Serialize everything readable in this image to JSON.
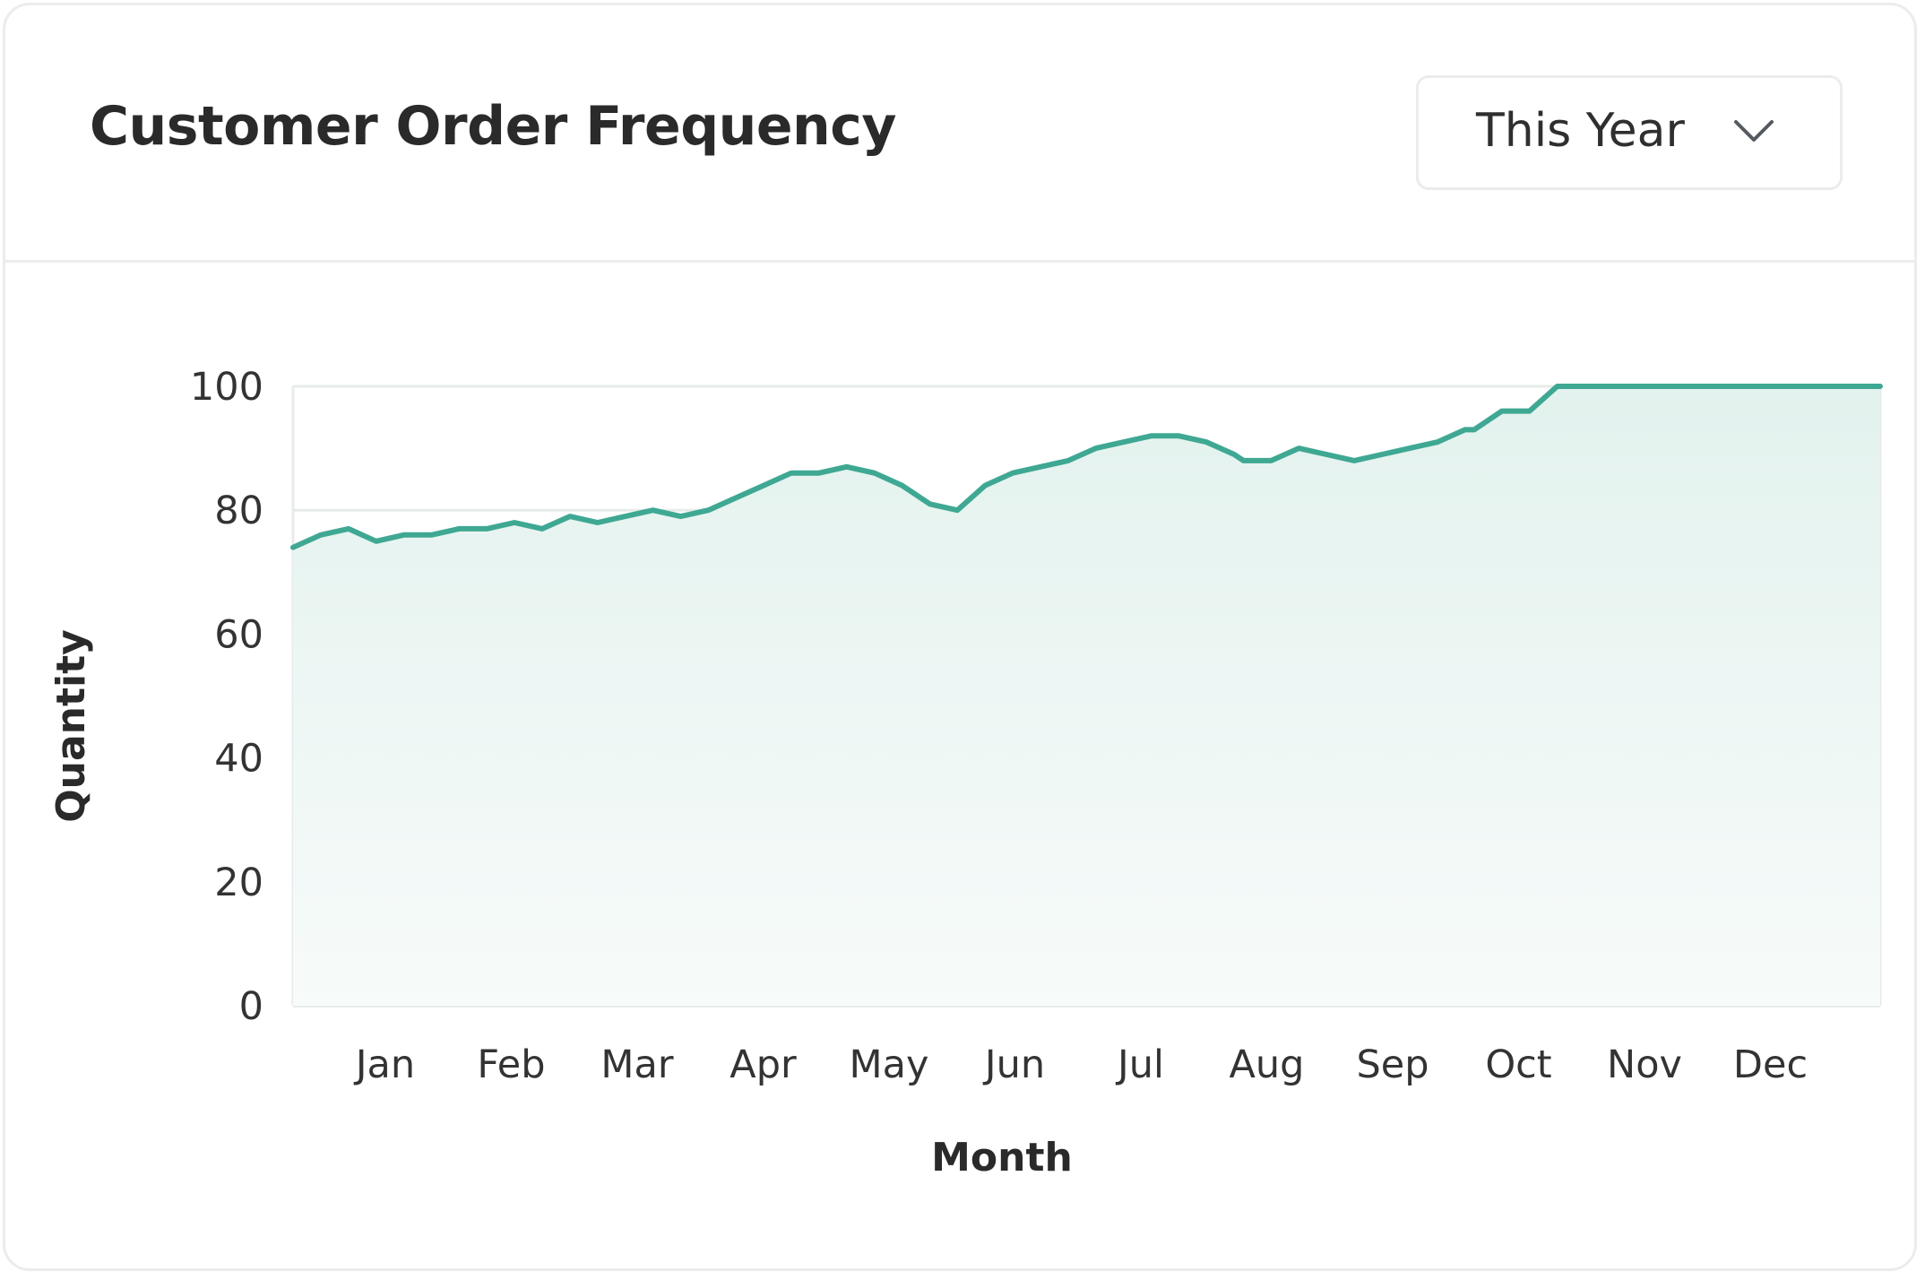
{
  "header": {
    "title": "Customer Order Frequency"
  },
  "period_select": {
    "value": "This Year",
    "icon": "chevron-down-icon"
  },
  "colors": {
    "line": "#3fa893",
    "area_top": "#e6f3f0",
    "grid": "#e6ecea",
    "border": "#ececec"
  },
  "chart_data": {
    "type": "area",
    "xlabel": "Month",
    "ylabel": "Quantity",
    "ylim": [
      0,
      100
    ],
    "yticks": [
      "0",
      "20",
      "40",
      "60",
      "80",
      "100"
    ],
    "xticks": [
      "Jan",
      "Feb",
      "Mar",
      "Apr",
      "May",
      "Jun",
      "Jul",
      "Aug",
      "Sep",
      "Oct",
      "Nov",
      "Dec"
    ],
    "grid": true,
    "legend": "none",
    "series": [
      {
        "x": [
          0.0,
          0.3,
          0.6,
          0.9,
          1.2,
          1.5,
          1.8,
          2.1,
          2.4,
          2.7,
          3.0,
          3.3,
          3.6,
          3.9,
          4.2,
          4.5,
          4.8,
          5.1,
          5.4,
          5.7,
          6.0,
          6.3,
          6.6,
          6.9,
          7.2,
          7.5,
          7.8,
          8.1,
          8.4,
          8.7,
          9.0,
          9.3,
          9.6,
          9.9,
          10.2,
          10.3,
          10.6,
          10.9,
          11.2,
          11.5,
          11.8,
          12.1,
          12.4,
          12.7,
          12.8,
          13.1,
          13.4,
          13.7,
          14.0,
          14.3,
          14.6,
          14.9,
          15.2,
          15.3,
          15.6,
          15.9,
          16.2,
          16.3,
          16.6,
          16.9,
          17.2
        ],
        "values": [
          74,
          76,
          77,
          75,
          76,
          76,
          77,
          77,
          78,
          77,
          79,
          78,
          79,
          80,
          79,
          80,
          82,
          84,
          86,
          86,
          87,
          86,
          84,
          81,
          80,
          84,
          86,
          87,
          88,
          90,
          91,
          92,
          92,
          91,
          89,
          88,
          88,
          90,
          89,
          88,
          89,
          90,
          91,
          93,
          93,
          96,
          96,
          100,
          100,
          100,
          100,
          100,
          100,
          100,
          100,
          100,
          100,
          100,
          100,
          100,
          100
        ]
      }
    ]
  }
}
